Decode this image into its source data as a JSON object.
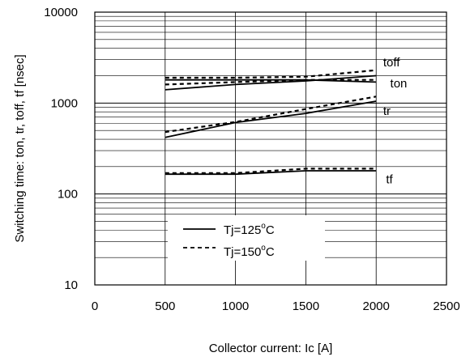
{
  "chart_data": {
    "type": "line",
    "title": "",
    "xlabel": "Collector current: Ic [A]",
    "ylabel": "Switching time: ton, tr, toff, tf [nsec]",
    "xlim": [
      0,
      2500
    ],
    "ylim": [
      10,
      10000
    ],
    "yscale": "log",
    "grid": true,
    "x_ticks": [
      "0",
      "500",
      "1000",
      "1500",
      "2000",
      "2500"
    ],
    "y_ticks": [
      "10",
      "100",
      "1000",
      "10000"
    ],
    "legend": {
      "placement": "bottom-center",
      "entries": [
        {
          "style": "solid",
          "text": "Tj=125",
          "sup": "o",
          "unit": "C"
        },
        {
          "style": "dashed",
          "text": "Tj=150",
          "sup": "o",
          "unit": "C"
        }
      ]
    },
    "series": [
      {
        "label": "toff",
        "condition": "Tj=125°C",
        "style": "solid",
        "x": [
          500,
          1000,
          1500,
          2000
        ],
        "y": [
          1800,
          1800,
          1800,
          1700
        ]
      },
      {
        "label": "toff",
        "condition": "Tj=150°C",
        "style": "dashed",
        "x": [
          500,
          1000,
          1500,
          2000
        ],
        "y": [
          1900,
          1900,
          1950,
          2300
        ]
      },
      {
        "label": "ton",
        "condition": "Tj=125°C",
        "style": "solid",
        "x": [
          500,
          1000,
          1500,
          2000
        ],
        "y": [
          1400,
          1600,
          1750,
          2000
        ]
      },
      {
        "label": "ton",
        "condition": "Tj=150°C",
        "style": "dashed",
        "x": [
          500,
          1000,
          1500,
          2000
        ],
        "y": [
          1600,
          1700,
          1800,
          1800
        ]
      },
      {
        "label": "tr",
        "condition": "Tj=125°C",
        "style": "solid",
        "x": [
          500,
          1000,
          1500,
          2000
        ],
        "y": [
          420,
          610,
          770,
          1050
        ]
      },
      {
        "label": "tr",
        "condition": "Tj=150°C",
        "style": "dashed",
        "x": [
          500,
          1000,
          1500,
          2000
        ],
        "y": [
          480,
          620,
          860,
          1180
        ]
      },
      {
        "label": "tf",
        "condition": "Tj=125°C",
        "style": "solid",
        "x": [
          500,
          1000,
          1500,
          2000
        ],
        "y": [
          165,
          165,
          180,
          180
        ]
      },
      {
        "label": "tf",
        "condition": "Tj=150°C",
        "style": "dashed",
        "x": [
          500,
          1000,
          1500,
          2000
        ],
        "y": [
          170,
          170,
          190,
          190
        ]
      }
    ],
    "series_labels": [
      {
        "text": "toff",
        "anchor_x": 2050,
        "anchor_y": 2800
      },
      {
        "text": "ton",
        "anchor_x": 2100,
        "anchor_y": 1650
      },
      {
        "text": "tr",
        "anchor_x": 2050,
        "anchor_y": 820
      },
      {
        "text": "tf",
        "anchor_x": 2070,
        "anchor_y": 145
      }
    ]
  }
}
